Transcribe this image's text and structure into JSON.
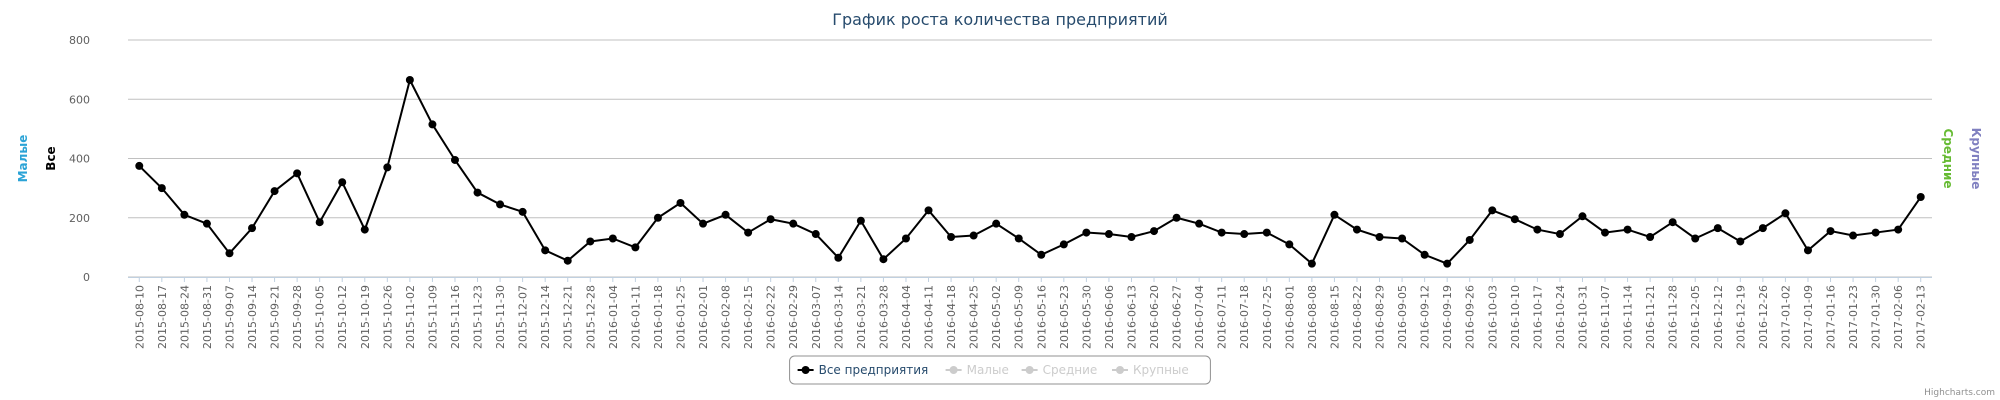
{
  "chart_data": {
    "type": "line",
    "title": "График роста количества предприятий",
    "x": [
      "2015-08-10",
      "2015-08-17",
      "2015-08-24",
      "2015-08-31",
      "2015-09-07",
      "2015-09-14",
      "2015-09-21",
      "2015-09-28",
      "2015-10-05",
      "2015-10-12",
      "2015-10-19",
      "2015-10-26",
      "2015-11-02",
      "2015-11-09",
      "2015-11-16",
      "2015-11-23",
      "2015-11-30",
      "2015-12-07",
      "2015-12-14",
      "2015-12-21",
      "2015-12-28",
      "2016-01-04",
      "2016-01-11",
      "2016-01-18",
      "2016-01-25",
      "2016-02-01",
      "2016-02-08",
      "2016-02-15",
      "2016-02-22",
      "2016-02-29",
      "2016-03-07",
      "2016-03-14",
      "2016-03-21",
      "2016-03-28",
      "2016-04-04",
      "2016-04-11",
      "2016-04-18",
      "2016-04-25",
      "2016-05-02",
      "2016-05-09",
      "2016-05-16",
      "2016-05-23",
      "2016-05-30",
      "2016-06-06",
      "2016-06-13",
      "2016-06-20",
      "2016-06-27",
      "2016-07-04",
      "2016-07-11",
      "2016-07-18",
      "2016-07-25",
      "2016-08-01",
      "2016-08-08",
      "2016-08-15",
      "2016-08-22",
      "2016-08-29",
      "2016-09-05",
      "2016-09-12",
      "2016-09-19",
      "2016-09-26",
      "2016-10-03",
      "2016-10-10",
      "2016-10-17",
      "2016-10-24",
      "2016-10-31",
      "2016-11-07",
      "2016-11-14",
      "2016-11-21",
      "2016-11-28",
      "2016-12-05",
      "2016-12-12",
      "2016-12-19",
      "2016-12-26",
      "2017-01-02",
      "2017-01-09",
      "2017-01-16",
      "2017-01-23",
      "2017-01-30",
      "2017-02-06",
      "2017-02-13"
    ],
    "series": [
      {
        "name": "Все предприятия",
        "color": "#000000",
        "visible": true,
        "values": [
          375,
          300,
          210,
          180,
          80,
          165,
          290,
          350,
          185,
          320,
          160,
          370,
          665,
          515,
          395,
          285,
          245,
          220,
          90,
          55,
          120,
          130,
          100,
          200,
          250,
          180,
          210,
          150,
          195,
          180,
          145,
          65,
          190,
          60,
          130,
          225,
          135,
          140,
          180,
          130,
          75,
          110,
          150,
          145,
          135,
          155,
          200,
          180,
          150,
          145,
          150,
          110,
          45,
          210,
          160,
          135,
          130,
          75,
          45,
          125,
          225,
          195,
          160,
          145,
          205,
          150,
          160,
          135,
          185,
          130,
          165,
          120,
          165,
          215,
          90,
          155,
          140,
          150,
          160,
          270
        ]
      },
      {
        "name": "Малые",
        "color": "#2ba3d6",
        "visible": false
      },
      {
        "name": "Средние",
        "color": "#66bb33",
        "visible": false
      },
      {
        "name": "Крупные",
        "color": "#8080c0",
        "visible": false
      }
    ],
    "ylim": [
      0,
      800
    ],
    "yticks": [
      0,
      200,
      400,
      600,
      800
    ],
    "grid": true,
    "axis_titles": [
      {
        "text": "Малые",
        "color": "#2ba3d6",
        "side": "left"
      },
      {
        "text": "Все",
        "color": "#000000",
        "side": "left"
      },
      {
        "text": "Средние",
        "color": "#66bb33",
        "side": "right"
      },
      {
        "text": "Крупные",
        "color": "#8080c0",
        "side": "right"
      }
    ],
    "legend": "bottom",
    "credits": "Highcharts.com"
  }
}
